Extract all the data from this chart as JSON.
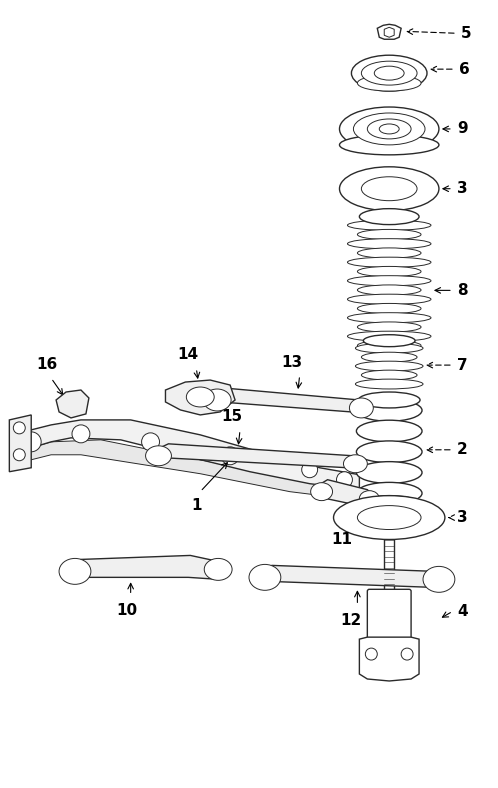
{
  "bg_color": "#ffffff",
  "line_color": "#2a2a2a",
  "label_color": "#000000",
  "fig_width": 4.98,
  "fig_height": 7.88,
  "dpi": 100,
  "xlim": [
    0,
    498
  ],
  "ylim": [
    0,
    788
  ]
}
